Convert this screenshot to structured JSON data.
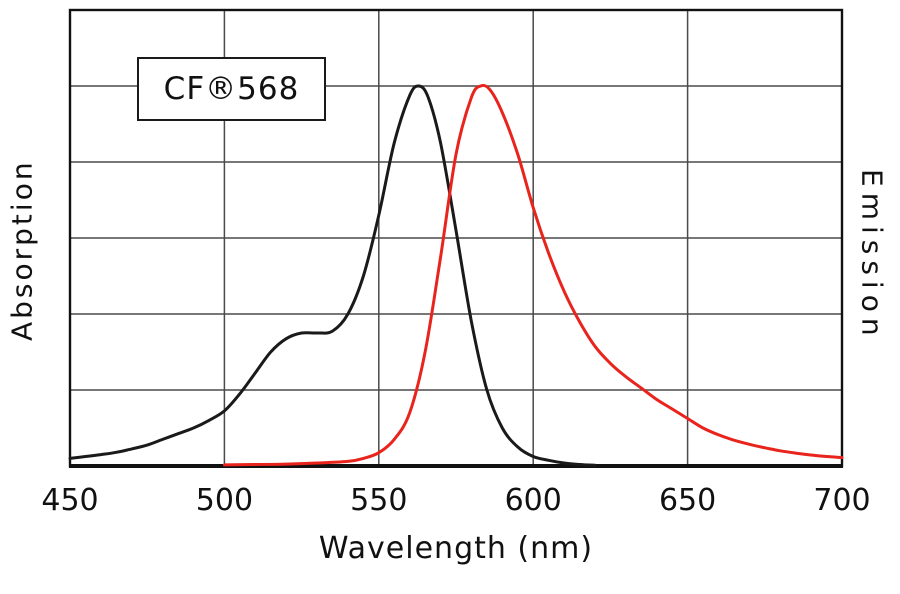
{
  "figure": {
    "background": "#ffffff"
  },
  "chart_data": {
    "type": "line",
    "title": "CF®568",
    "xlabel": "Wavelength (nm)",
    "ylabel_left": "Absorption",
    "ylabel_right": "Emission",
    "xlim": [
      450,
      700
    ],
    "ylim": [
      0,
      1.2
    ],
    "x_ticks": [
      450,
      500,
      550,
      600,
      650,
      700
    ],
    "y_gridlines": [
      0.2,
      0.4,
      0.6,
      0.8,
      1.0
    ],
    "grid": true,
    "grid_color": "#4a4a4a",
    "border_color": "#111111",
    "legend_position": "none",
    "series": [
      {
        "name": "Absorption",
        "color": "#1a1a1a",
        "stroke_width": 3,
        "points": [
          [
            450,
            0.02
          ],
          [
            455,
            0.025
          ],
          [
            460,
            0.03
          ],
          [
            465,
            0.036
          ],
          [
            470,
            0.045
          ],
          [
            475,
            0.055
          ],
          [
            480,
            0.07
          ],
          [
            485,
            0.085
          ],
          [
            490,
            0.1
          ],
          [
            495,
            0.12
          ],
          [
            500,
            0.145
          ],
          [
            505,
            0.19
          ],
          [
            510,
            0.245
          ],
          [
            515,
            0.3
          ],
          [
            520,
            0.335
          ],
          [
            525,
            0.35
          ],
          [
            530,
            0.35
          ],
          [
            535,
            0.355
          ],
          [
            540,
            0.4
          ],
          [
            545,
            0.5
          ],
          [
            550,
            0.66
          ],
          [
            555,
            0.85
          ],
          [
            560,
            0.975
          ],
          [
            563,
            1.0
          ],
          [
            566,
            0.97
          ],
          [
            570,
            0.85
          ],
          [
            575,
            0.62
          ],
          [
            580,
            0.38
          ],
          [
            585,
            0.2
          ],
          [
            590,
            0.1
          ],
          [
            595,
            0.05
          ],
          [
            600,
            0.025
          ],
          [
            605,
            0.015
          ],
          [
            610,
            0.008
          ],
          [
            615,
            0.004
          ],
          [
            620,
            0.002
          ]
        ]
      },
      {
        "name": "Emission",
        "color": "#e8241c",
        "stroke_width": 3,
        "points": [
          [
            500,
            0.003
          ],
          [
            510,
            0.004
          ],
          [
            520,
            0.005
          ],
          [
            530,
            0.008
          ],
          [
            540,
            0.012
          ],
          [
            545,
            0.02
          ],
          [
            550,
            0.035
          ],
          [
            555,
            0.07
          ],
          [
            560,
            0.14
          ],
          [
            565,
            0.3
          ],
          [
            570,
            0.55
          ],
          [
            575,
            0.82
          ],
          [
            580,
            0.97
          ],
          [
            583,
            1.0
          ],
          [
            586,
            0.99
          ],
          [
            590,
            0.93
          ],
          [
            595,
            0.82
          ],
          [
            600,
            0.68
          ],
          [
            605,
            0.56
          ],
          [
            610,
            0.46
          ],
          [
            615,
            0.38
          ],
          [
            620,
            0.315
          ],
          [
            625,
            0.27
          ],
          [
            630,
            0.235
          ],
          [
            635,
            0.205
          ],
          [
            640,
            0.175
          ],
          [
            645,
            0.15
          ],
          [
            650,
            0.125
          ],
          [
            655,
            0.1
          ],
          [
            660,
            0.082
          ],
          [
            665,
            0.068
          ],
          [
            670,
            0.057
          ],
          [
            675,
            0.048
          ],
          [
            680,
            0.04
          ],
          [
            685,
            0.034
          ],
          [
            690,
            0.029
          ],
          [
            695,
            0.025
          ],
          [
            700,
            0.022
          ]
        ]
      }
    ]
  }
}
